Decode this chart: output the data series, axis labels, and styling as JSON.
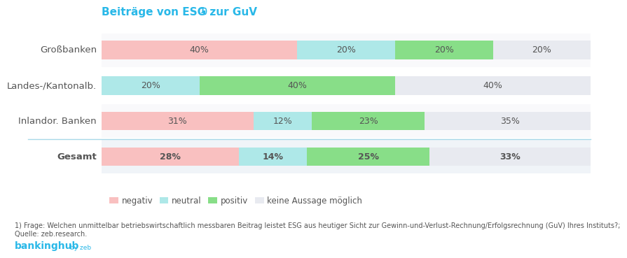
{
  "title": "Beiträge von ESG zur GuV",
  "title_superscript": "1)",
  "categories": [
    "Großbanken",
    "Landes-/Kantonalb.",
    "Inlandor. Banken",
    "Gesamt"
  ],
  "segments": [
    "negativ",
    "neutral",
    "positiv",
    "keine"
  ],
  "values": {
    "negativ": [
      40,
      0,
      31,
      28
    ],
    "neutral": [
      20,
      20,
      12,
      14
    ],
    "positiv": [
      20,
      40,
      23,
      25
    ],
    "keine": [
      20,
      40,
      35,
      33
    ]
  },
  "colors": {
    "negativ": "#f9c0c0",
    "neutral": "#aee8e8",
    "positiv": "#88de88",
    "keine": "#e8eaf0"
  },
  "text_color": "#555555",
  "title_color": "#29b8e8",
  "bankinghub_color": "#29b8e8",
  "separator_color": "#a8d8e8",
  "footnote_text": "1) Frage: Welchen unmittelbar betriebswirtschaftlich messbaren Beitrag leistet ESG aus heutiger Sicht zur Gewinn-und-Verlust-Rechnung/Erfolgsrechnung (GuV) Ihres Instituts?;\nQuelle: zeb.research.",
  "legend_labels": [
    "negativ",
    "neutral",
    "positiv",
    "keine Aussage möglich"
  ],
  "background_color": "#ffffff",
  "bar_height": 0.52,
  "gesamt_index": 3,
  "row_bg_colors": [
    "#f9f9fb",
    "#ffffff",
    "#f9f9fb",
    "#f0f4f8"
  ]
}
